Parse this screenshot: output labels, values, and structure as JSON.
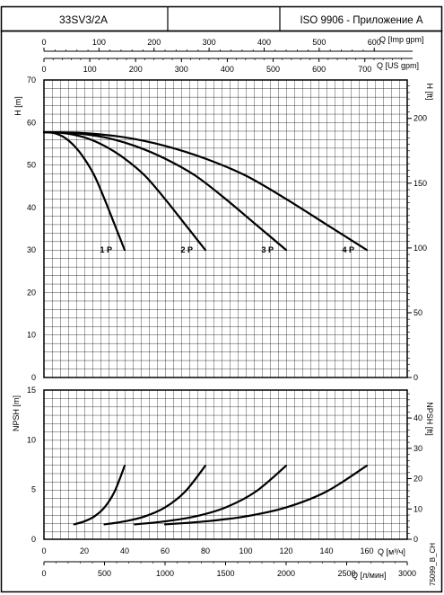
{
  "header": {
    "model": "33SV3/2A",
    "blank": "",
    "standard": "ISO 9906 - Приложение A"
  },
  "code": "75099_B_CH",
  "axes": {
    "q_imp_label": "Q [Imp gpm]",
    "q_imp_ticks": [
      "0",
      "100",
      "200",
      "300",
      "400",
      "500",
      "600"
    ],
    "q_us_label": "Q [US gpm]",
    "q_us_ticks": [
      "0",
      "100",
      "200",
      "300",
      "400",
      "500",
      "600",
      "700"
    ],
    "h_m_label": "H [m]",
    "h_m_ticks": [
      "0",
      "10",
      "20",
      "30",
      "40",
      "50",
      "60",
      "70"
    ],
    "h_ft_label": "H [ft]",
    "h_ft_ticks": [
      "0",
      "50",
      "100",
      "150",
      "200"
    ],
    "npsh_m_label": "NPSH [m]",
    "npsh_m_ticks": [
      "0",
      "5",
      "10",
      "15"
    ],
    "npsh_ft_label": "NPSH [ft]",
    "npsh_ft_ticks": [
      "0",
      "10",
      "20",
      "30",
      "40"
    ],
    "q_m3_label": "Q [м³/ч]",
    "q_m3_ticks": [
      "0",
      "20",
      "40",
      "60",
      "80",
      "100",
      "120",
      "140",
      "160"
    ],
    "q_lmin_label": "Q [л/мин]",
    "q_lmin_ticks": [
      "0",
      "500",
      "1000",
      "1500",
      "2000",
      "2500",
      "3000"
    ]
  },
  "chart_data": [
    {
      "type": "line",
      "title": "33SV3/2A",
      "xlabel": "Q [м³/ч]",
      "ylabel": "H [m]",
      "xlim": [
        0,
        180
      ],
      "ylim": [
        0,
        70
      ],
      "grid": true,
      "series": [
        {
          "name": "1 P",
          "x": [
            0,
            5,
            10,
            15,
            20,
            25,
            30,
            35,
            40
          ],
          "y": [
            57.7,
            57.5,
            56.5,
            54.5,
            51.5,
            47.5,
            42,
            36,
            30
          ]
        },
        {
          "name": "2 P",
          "x": [
            0,
            10,
            20,
            30,
            40,
            50,
            60,
            70,
            80
          ],
          "y": [
            57.7,
            57.5,
            56.5,
            54.5,
            51.5,
            47.5,
            42,
            36,
            30
          ]
        },
        {
          "name": "3 P",
          "x": [
            0,
            15,
            30,
            45,
            60,
            75,
            90,
            105,
            120
          ],
          "y": [
            57.7,
            57.5,
            56.5,
            54.5,
            51.5,
            47.5,
            42,
            36,
            30
          ]
        },
        {
          "name": "4 P",
          "x": [
            0,
            20,
            40,
            60,
            80,
            100,
            120,
            140,
            160
          ],
          "y": [
            57.7,
            57.5,
            56.5,
            54.5,
            51.5,
            47.5,
            42,
            36,
            30
          ]
        }
      ]
    },
    {
      "type": "line",
      "xlabel": "Q [м³/ч]",
      "ylabel": "NPSH [m]",
      "xlim": [
        0,
        180
      ],
      "ylim": [
        0,
        15
      ],
      "grid": true,
      "series": [
        {
          "x": [
            15,
            20,
            25,
            30,
            35,
            40
          ],
          "y": [
            1.5,
            1.8,
            2.3,
            3.2,
            4.8,
            7.4
          ]
        },
        {
          "x": [
            30,
            40,
            50,
            60,
            70,
            80
          ],
          "y": [
            1.5,
            1.8,
            2.3,
            3.2,
            4.8,
            7.4
          ]
        },
        {
          "x": [
            45,
            60,
            75,
            90,
            105,
            120
          ],
          "y": [
            1.5,
            1.8,
            2.3,
            3.2,
            4.8,
            7.4
          ]
        },
        {
          "x": [
            60,
            80,
            100,
            120,
            140,
            160
          ],
          "y": [
            1.5,
            1.8,
            2.3,
            3.2,
            4.8,
            7.4
          ]
        }
      ]
    }
  ]
}
